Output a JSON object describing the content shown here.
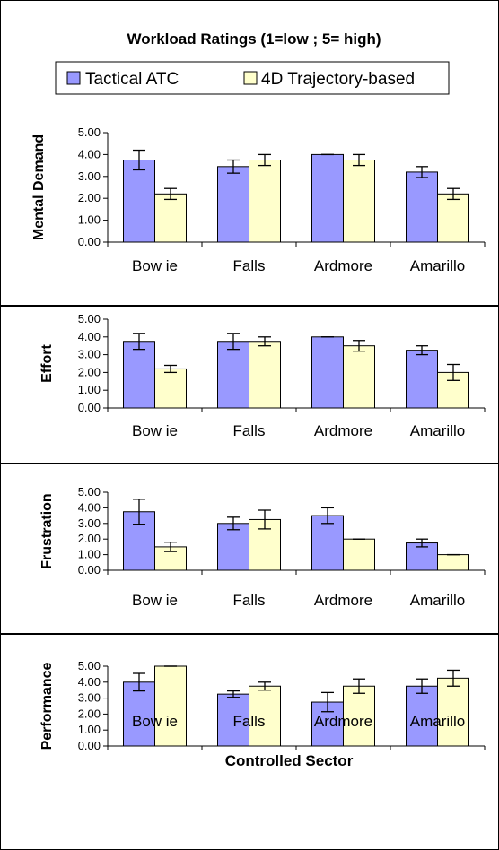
{
  "chart_data": {
    "type": "bar",
    "title": "Workload Ratings (1=low ; 5= high)",
    "xlabel": "Controlled Sector",
    "categories": [
      "Bow ie",
      "Falls",
      "Ardmore",
      "Amarillo"
    ],
    "legend": {
      "placement": "top",
      "entries": [
        "Tactical ATC",
        "4D Trajectory-based"
      ]
    },
    "colors": {
      "tactical": "#9999ff",
      "trajectory": "#ffffcc",
      "axis": "#000000"
    },
    "y_ticks": [
      "0.00",
      "1.00",
      "2.00",
      "3.00",
      "4.00",
      "5.00"
    ],
    "ylim": [
      0,
      5
    ],
    "grid": false,
    "panels": [
      {
        "ylabel": "Mental Demand",
        "series": [
          {
            "name": "Tactical ATC",
            "values": [
              3.75,
              3.45,
              4.0,
              3.2
            ],
            "err": [
              0.45,
              0.3,
              0.0,
              0.25
            ]
          },
          {
            "name": "4D Trajectory-based",
            "values": [
              2.2,
              3.75,
              3.75,
              2.2
            ],
            "err": [
              0.25,
              0.25,
              0.25,
              0.25
            ]
          }
        ]
      },
      {
        "ylabel": "Effort",
        "series": [
          {
            "name": "Tactical ATC",
            "values": [
              3.75,
              3.75,
              4.0,
              3.25
            ],
            "err": [
              0.45,
              0.45,
              0.0,
              0.25
            ]
          },
          {
            "name": "4D Trajectory-based",
            "values": [
              2.2,
              3.75,
              3.5,
              2.0
            ],
            "err": [
              0.2,
              0.25,
              0.3,
              0.45
            ]
          }
        ]
      },
      {
        "ylabel": "Frustration",
        "series": [
          {
            "name": "Tactical ATC",
            "values": [
              3.75,
              3.0,
              3.5,
              1.75
            ],
            "err": [
              0.8,
              0.4,
              0.5,
              0.25
            ]
          },
          {
            "name": "4D Trajectory-based",
            "values": [
              1.5,
              3.25,
              2.0,
              1.0
            ],
            "err": [
              0.3,
              0.6,
              0.0,
              0.0
            ]
          }
        ]
      },
      {
        "ylabel": "Performance",
        "series": [
          {
            "name": "Tactical ATC",
            "values": [
              4.0,
              3.25,
              2.75,
              3.75
            ],
            "err": [
              0.55,
              0.2,
              0.6,
              0.45
            ]
          },
          {
            "name": "4D Trajectory-based",
            "values": [
              5.0,
              3.75,
              3.75,
              4.25
            ],
            "err": [
              0.0,
              0.25,
              0.45,
              0.5
            ]
          }
        ]
      }
    ]
  }
}
